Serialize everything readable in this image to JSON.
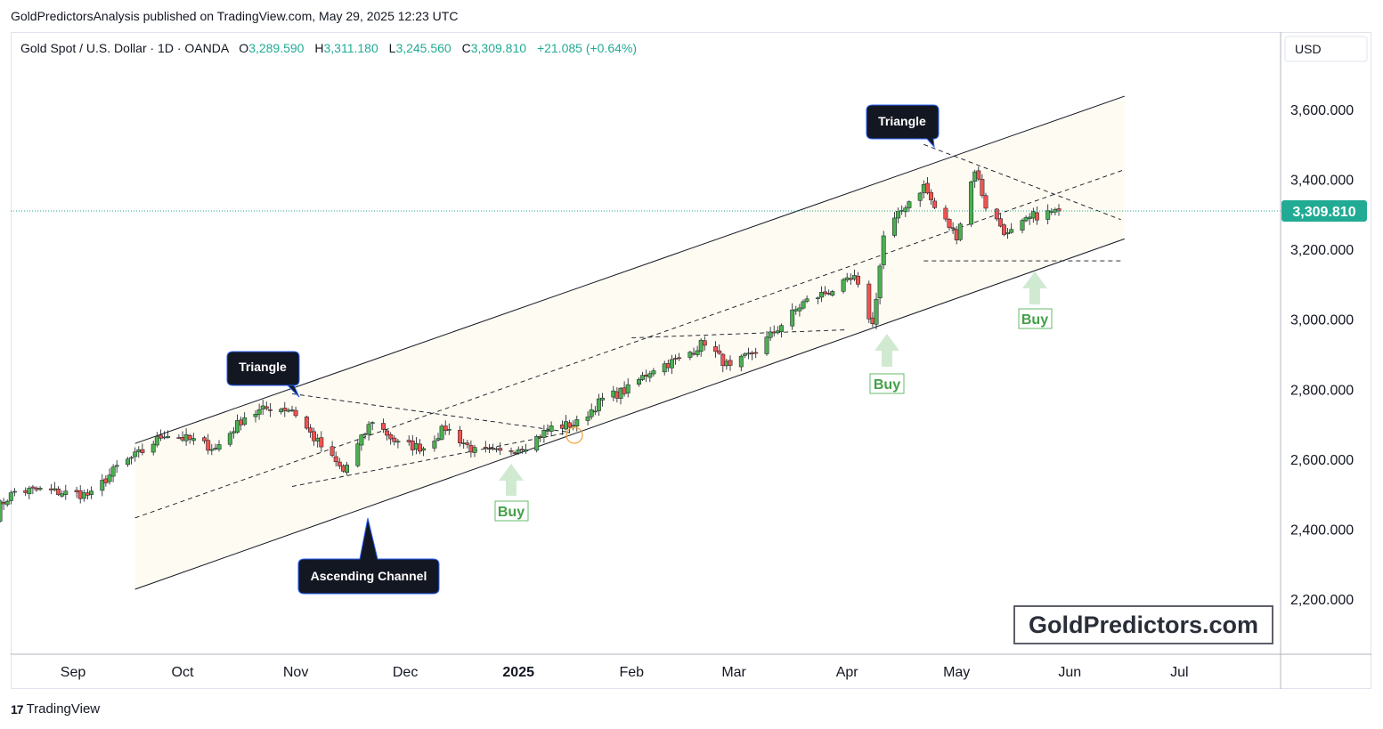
{
  "header": {
    "text": "GoldPredictorsAnalysis published on TradingView.com, May 29, 2025 12:23 UTC"
  },
  "legend": {
    "symbol": "Gold Spot / U.S. Dollar · 1D · OANDA",
    "open_label": "O",
    "open": "3,289.590",
    "high_label": "H",
    "high": "3,311.180",
    "low_label": "L",
    "low": "3,245.560",
    "close_label": "C",
    "close": "3,309.810",
    "change": "+21.085 (+0.64%)"
  },
  "price_axis": {
    "currency": "USD",
    "last_price": "3,309.810",
    "ticks": [
      "3,600.000",
      "3,400.000",
      "3,200.000",
      "3,000.000",
      "2,800.000",
      "2,600.000",
      "2,400.000",
      "2,200.000"
    ]
  },
  "time_axis": {
    "labels": [
      "Sep",
      "Oct",
      "Nov",
      "Dec",
      "2025",
      "Feb",
      "Mar",
      "Apr",
      "May",
      "Jun",
      "Jul"
    ]
  },
  "annotations": {
    "triangle_1": "Triangle",
    "triangle_2": "Triangle",
    "ascending_channel": "Ascending Channel",
    "buy_1": "Buy",
    "buy_2": "Buy",
    "buy_3": "Buy"
  },
  "watermark": "GoldPredictors.com",
  "footer": {
    "brand": "TradingView"
  },
  "colors": {
    "up": "#26a69a",
    "up_body": "#4caf50",
    "down": "#ef5350",
    "accent_green": "#22ab94",
    "buy": "#43a047"
  },
  "chart_data": {
    "type": "candlestick",
    "symbol": "Gold Spot / U.S. Dollar",
    "interval": "1D",
    "ylim": [
      2100,
      3720
    ],
    "y_ticks": [
      2200,
      2400,
      2600,
      2800,
      3000,
      3200,
      3400,
      3600
    ],
    "x_ticks": [
      "Sep",
      "Oct",
      "Nov",
      "Dec",
      "2025",
      "Feb",
      "Mar",
      "Apr",
      "May",
      "Jun",
      "Jul"
    ],
    "last_close": 3309.81,
    "anchors": [
      [
        "2024-08-09",
        2440
      ],
      [
        "2024-08-16",
        2507
      ],
      [
        "2024-08-23",
        2512
      ],
      [
        "2024-08-30",
        2503
      ],
      [
        "2024-09-06",
        2497
      ],
      [
        "2024-09-13",
        2577
      ],
      [
        "2024-09-20",
        2622
      ],
      [
        "2024-09-26",
        2673
      ],
      [
        "2024-10-04",
        2653
      ],
      [
        "2024-10-10",
        2630
      ],
      [
        "2024-10-18",
        2722
      ],
      [
        "2024-10-25",
        2748
      ],
      [
        "2024-10-31",
        2743
      ],
      [
        "2024-11-06",
        2660
      ],
      [
        "2024-11-14",
        2565
      ],
      [
        "2024-11-22",
        2712
      ],
      [
        "2024-11-29",
        2643
      ],
      [
        "2024-12-06",
        2633
      ],
      [
        "2024-12-12",
        2690
      ],
      [
        "2024-12-20",
        2622
      ],
      [
        "2024-12-27",
        2618
      ],
      [
        "2025-01-03",
        2641
      ],
      [
        "2025-01-10",
        2690
      ],
      [
        "2025-01-17",
        2702
      ],
      [
        "2025-01-24",
        2771
      ],
      [
        "2025-01-31",
        2800
      ],
      [
        "2025-02-07",
        2861
      ],
      [
        "2025-02-14",
        2884
      ],
      [
        "2025-02-21",
        2936
      ],
      [
        "2025-02-28",
        2858
      ],
      [
        "2025-03-07",
        2911
      ],
      [
        "2025-03-14",
        2985
      ],
      [
        "2025-03-20",
        3047
      ],
      [
        "2025-03-28",
        3085
      ],
      [
        "2025-04-03",
        3115
      ],
      [
        "2025-04-08",
        2983
      ],
      [
        "2025-04-11",
        3237
      ],
      [
        "2025-04-17",
        3327
      ],
      [
        "2025-04-22",
        3381
      ],
      [
        "2025-04-25",
        3319
      ],
      [
        "2025-05-01",
        3240
      ],
      [
        "2025-05-06",
        3430
      ],
      [
        "2025-05-09",
        3325
      ],
      [
        "2025-05-15",
        3240
      ],
      [
        "2025-05-22",
        3295
      ],
      [
        "2025-05-29",
        3309.81
      ]
    ],
    "drawings": {
      "ascending_channel_upper": [
        [
          "2024-09-18",
          2645
        ],
        [
          "2025-06-16",
          3638
        ]
      ],
      "ascending_channel_mid": [
        [
          "2024-09-18",
          2432
        ],
        [
          "2025-06-16",
          3428
        ]
      ],
      "ascending_channel_lower": [
        [
          "2024-09-18",
          2228
        ],
        [
          "2025-06-16",
          3230
        ]
      ],
      "triangle_1_upper": [
        [
          "2024-10-31",
          2787
        ],
        [
          "2025-01-15",
          2677
        ]
      ],
      "triangle_1_lower": [
        [
          "2024-10-31",
          2522
        ],
        [
          "2025-01-15",
          2677
        ]
      ],
      "triangle_2_upper": [
        [
          "2025-04-22",
          3500
        ],
        [
          "2025-06-15",
          3285
        ]
      ],
      "triangle_2_lower": [
        [
          "2025-04-22",
          3167
        ],
        [
          "2025-06-15",
          3167
        ]
      ],
      "support_line_1": [
        [
          "2025-02-01",
          2947
        ],
        [
          "2025-04-01",
          2970
        ]
      ]
    },
    "markers": {
      "buy_1": "2024-12-31",
      "buy_2": "2025-04-09",
      "buy_3": "2025-05-15"
    }
  }
}
